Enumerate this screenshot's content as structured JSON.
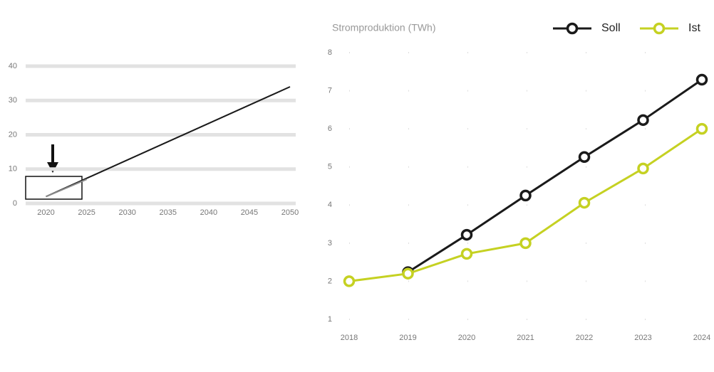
{
  "chart_data": [
    {
      "type": "line",
      "x": [
        2020,
        2050
      ],
      "series": [
        {
          "color": "#1a1a1a",
          "x": [
            2020,
            2050
          ],
          "values": [
            2,
            34
          ]
        },
        {
          "color": "#8a8a8a",
          "x": [
            2020,
            2025
          ],
          "values": [
            2,
            7
          ]
        }
      ],
      "xlim": [
        2017.5,
        2050.7
      ],
      "xticks": [
        2020,
        2025,
        2030,
        2035,
        2040,
        2045,
        2050
      ],
      "ylim": [
        0,
        40
      ],
      "yticks": [
        0,
        10,
        20,
        30,
        40
      ],
      "grid": true
    },
    {
      "type": "line",
      "title": "Stromproduktion (TWh)",
      "categories": [
        "2018",
        "2019",
        "2020",
        "2021",
        "2022",
        "2023",
        "2024"
      ],
      "series": [
        {
          "name": "Soll",
          "color": "#1a1a1a",
          "values": [
            null,
            2.24,
            3.22,
            4.25,
            5.26,
            6.23,
            7.29
          ]
        },
        {
          "name": "Ist",
          "color": "#c5d122",
          "values": [
            2.0,
            2.2,
            2.72,
            3.0,
            4.06,
            4.96,
            6.0
          ]
        }
      ],
      "ylim": [
        1,
        8
      ],
      "yticks": [
        1,
        2,
        3,
        4,
        5,
        6,
        7,
        8
      ],
      "grid": true,
      "markers": true
    }
  ]
}
